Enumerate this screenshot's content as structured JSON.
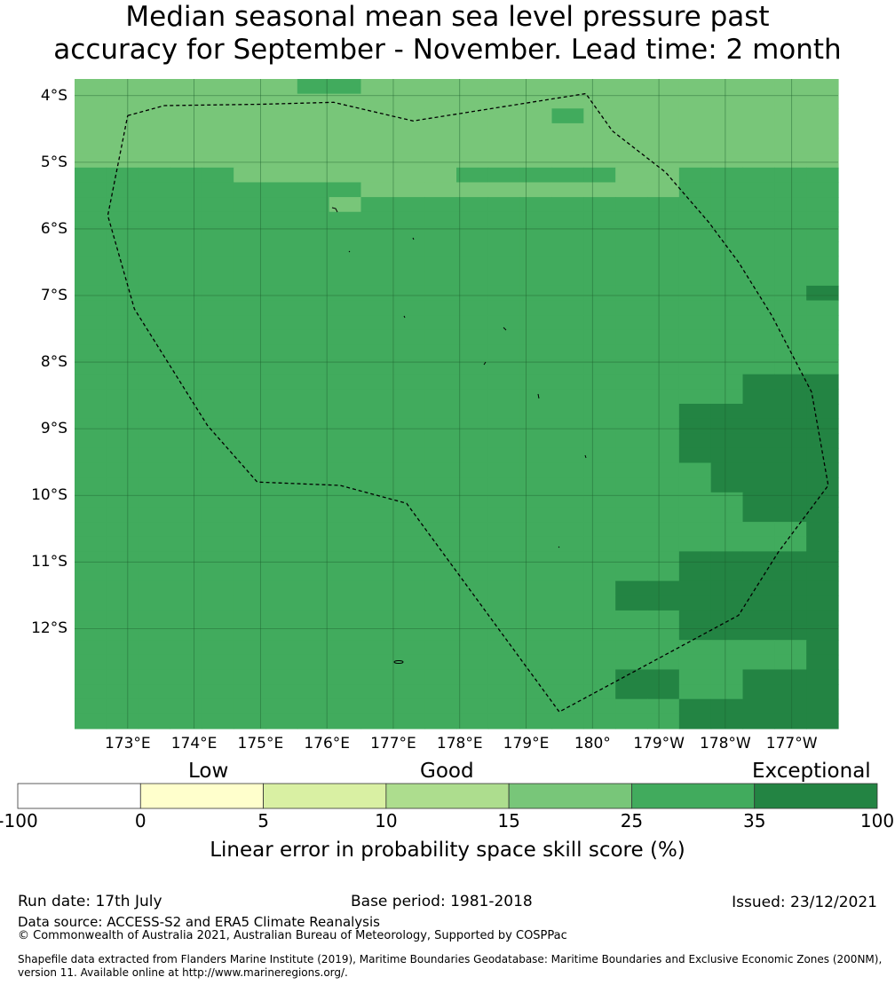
{
  "title": {
    "line1": "Median seasonal mean sea level pressure past",
    "line2": "accuracy for September - November. Lead time: 2 month"
  },
  "map": {
    "lon_range": [
      172.2,
      183.7
    ],
    "lat_range": [
      -13.5,
      -3.75
    ],
    "cell_size_deg": [
      0.833,
      0.555
    ],
    "lat_ticks": [
      "4°S",
      "5°S",
      "6°S",
      "7°S",
      "8°S",
      "9°S",
      "10°S",
      "11°S",
      "12°S"
    ],
    "lon_ticks": [
      "173°E",
      "174°E",
      "175°E",
      "176°E",
      "177°E",
      "178°E",
      "179°E",
      "180°",
      "179°W",
      "178°W",
      "177°W"
    ],
    "gridlines": true,
    "eez_boundary_style": "dashed black",
    "eez_boundary_lonlat": [
      [
        173.0,
        -4.3
      ],
      [
        173.55,
        -4.15
      ],
      [
        175.0,
        -4.13
      ],
      [
        176.1,
        -4.1
      ],
      [
        177.3,
        -4.38
      ],
      [
        179.9,
        -3.97
      ],
      [
        180.3,
        -4.53
      ],
      [
        181.1,
        -5.15
      ],
      [
        181.75,
        -5.9
      ],
      [
        182.2,
        -6.5
      ],
      [
        182.7,
        -7.3
      ],
      [
        183.3,
        -8.45
      ],
      [
        183.55,
        -9.85
      ],
      [
        182.8,
        -10.85
      ],
      [
        182.2,
        -11.8
      ],
      [
        179.5,
        -13.25
      ],
      [
        177.2,
        -10.12
      ],
      [
        176.2,
        -9.85
      ],
      [
        174.95,
        -9.8
      ],
      [
        174.2,
        -8.95
      ],
      [
        173.1,
        -7.2
      ],
      [
        172.7,
        -5.8
      ],
      [
        173.0,
        -4.3
      ]
    ],
    "grid_skill_rows_top_to_bottom": [
      "CCCCCCCDDCCCCCCCCCCCCCCC",
      "CCCCCCCCCCCCCCCCCCCCCCCC",
      "CCCCCCCCCCCCCCCDCCCCCCCC",
      "CCCCCCCCCCCCCCCCCCCCCCCC",
      "CCCCCCCCCCCCCCCCCCCCCCCC",
      "CCCCCCCCCCCCCCCCCCCCCCCC",
      "DDDDDCCCCCCCDDDDDCCDDDDD",
      "DDDDDDDDDCCCCCCCCCCDDDDD",
      "DDDDDDDDCDDDDDDDDDDDDDDD",
      "DDDDDDDDDDDDDDDDDDDDDDDD",
      "DDDDDDDDDDDDDDDDDDDDDDDD",
      "DDDDDDDDDDDDDDDDDDDDDDDD",
      "DDDDDDDDDDDDDDDDDDDDDDDD",
      "DDDDDDDDDDDDDDDDDDDDDDDD",
      "DDDDDDDDDDDDDDDDDDDDDDDE",
      "DDDDDDDDDDDDDDDDDDDDDDDD",
      "DDDDDDDDDDDDDDDDDDDDDDDD",
      "DDDDDDDDDDDDDDDDDDDDDDDD",
      "DDDDDDDDDDDDDDDDDDDDDDDD",
      "DDDDDDDDDDDDDDDDDDDDDDDD",
      "DDDDDDDDDDDDDDDDDDDDDEEE",
      "DDDDDDDDDDDDDDDDDDDDDEEE",
      "DDDDDDDDDDDDDDDDDDDEEEEE",
      "DDDDDDDDDDDDDDDDDDDEEEEE",
      "DDDDDDDDDDDDDDDDDDDEEEEE",
      "DDDDDDDDDDDDDDDDDDDEEEEE",
      "DDDDDDDDDDDDDDDDDDDDEEEE",
      "DDDDDDDDDDDDDDDDDDDDEEEE",
      "DDDDDDDDDDDDDDDDDDDDDEEE",
      "DDDDDDDDDDDDDDDDDDDDDEEE",
      "DDDDDDDDDDDDDDDDDDDDDDDE",
      "DDDDDDDDDDDDDDDDDDDDDDDE",
      "DDDDDDDDDDDDDDDDDDDEEEEE",
      "DDDDDDDDDDDDDDDDDDDEEEEE",
      "DDDDDDDDDDDDDDDDDEEEEEEE",
      "DDDDDDDDDDDDDDDDDEEEEEEE",
      "DDDDDDDDDDDDDDDDDDDEEEEE",
      "DDDDDDDDDDDDDDDDDDDEEEEE",
      "DDDDDDDDDDDDDDDDDDDDDDDE",
      "DDDDDDDDDDDDDDDDDDDDDDDE",
      "DDDDDDDDDDDDDDDDDEEDDEEE",
      "DDDDDDDDDDDDDDDDDEEDDEEE",
      "DDDDDDDDDDDDDDDDDDDEEEEE",
      "DDDDDDDDDDDDDDDDDDDEEEEE"
    ],
    "class_colors": {
      "C": "#78c679",
      "D": "#41ab5d",
      "E": "#238443"
    }
  },
  "legend": {
    "categories": [
      "Low",
      "Good",
      "Exceptional"
    ],
    "bins": [
      {
        "from": -100,
        "to": 0,
        "color": "#ffffff"
      },
      {
        "from": 0,
        "to": 5,
        "color": "#ffffcc"
      },
      {
        "from": 5,
        "to": 10,
        "color": "#d9f0a3"
      },
      {
        "from": 10,
        "to": 15,
        "color": "#addd8e"
      },
      {
        "from": 15,
        "to": 25,
        "color": "#78c679"
      },
      {
        "from": 25,
        "to": 35,
        "color": "#41ab5d"
      },
      {
        "from": 35,
        "to": 100,
        "color": "#238443"
      }
    ],
    "tick_labels": [
      "-100",
      "0",
      "5",
      "10",
      "15",
      "25",
      "35",
      "100"
    ],
    "title": "Linear error in probability space skill score (%)"
  },
  "footer": {
    "run_date": "Run date: 17th July",
    "base_period": "Base period: 1981-2018",
    "issued": "Issued: 23/12/2021",
    "data_source": "Data source: ACCESS-S2 and ERA5 Climate Reanalysis",
    "copyright": "© Commonwealth of Australia 2021, Australian Bureau of Meteorology, Supported by COSPPac",
    "shapefile_line1": "Shapefile data extracted from Flanders Marine Institute (2019), Maritime Boundaries Geodatabase: Maritime Boundaries and Exclusive Economic Zones (200NM),",
    "shapefile_line2": "version 11. Available online at http://www.marineregions.org/."
  }
}
